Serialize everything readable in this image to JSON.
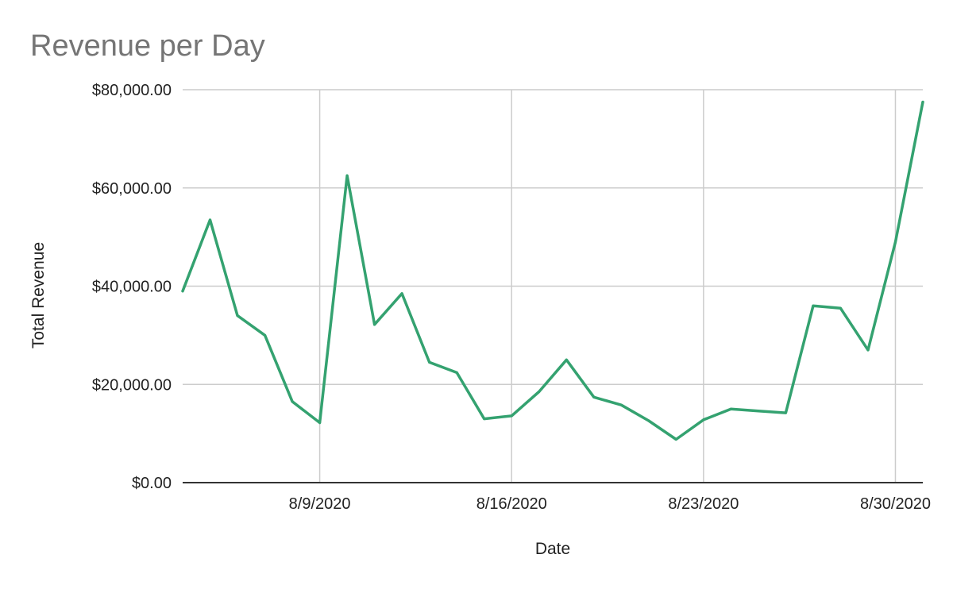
{
  "chart_data": {
    "type": "line",
    "title": "Revenue per Day",
    "xlabel": "Date",
    "ylabel": "Total Revenue",
    "ylim": [
      0,
      80000
    ],
    "yticks": [
      {
        "value": 0,
        "label": "$0.00"
      },
      {
        "value": 20000,
        "label": "$20,000.00"
      },
      {
        "value": 40000,
        "label": "$40,000.00"
      },
      {
        "value": 60000,
        "label": "$60,000.00"
      },
      {
        "value": 80000,
        "label": "$80,000.00"
      }
    ],
    "xlim": [
      "2020-08-04",
      "2020-08-31"
    ],
    "xticks": [
      {
        "value": "2020-08-09",
        "label": "8/9/2020"
      },
      {
        "value": "2020-08-16",
        "label": "8/16/2020"
      },
      {
        "value": "2020-08-23",
        "label": "8/23/2020"
      },
      {
        "value": "2020-08-30",
        "label": "8/30/2020"
      }
    ],
    "grid": true,
    "legend": "none",
    "series": [
      {
        "color": "#34a270",
        "points": [
          {
            "x": "2020-08-04",
            "y": 39000
          },
          {
            "x": "2020-08-05",
            "y": 53500
          },
          {
            "x": "2020-08-06",
            "y": 34000
          },
          {
            "x": "2020-08-07",
            "y": 30000
          },
          {
            "x": "2020-08-08",
            "y": 16500
          },
          {
            "x": "2020-08-09",
            "y": 12200
          },
          {
            "x": "2020-08-10",
            "y": 62500
          },
          {
            "x": "2020-08-11",
            "y": 32200
          },
          {
            "x": "2020-08-12",
            "y": 38500
          },
          {
            "x": "2020-08-13",
            "y": 24500
          },
          {
            "x": "2020-08-14",
            "y": 22400
          },
          {
            "x": "2020-08-15",
            "y": 13000
          },
          {
            "x": "2020-08-16",
            "y": 13600
          },
          {
            "x": "2020-08-17",
            "y": 18500
          },
          {
            "x": "2020-08-18",
            "y": 25000
          },
          {
            "x": "2020-08-19",
            "y": 17400
          },
          {
            "x": "2020-08-20",
            "y": 15800
          },
          {
            "x": "2020-08-21",
            "y": 12600
          },
          {
            "x": "2020-08-22",
            "y": 8800
          },
          {
            "x": "2020-08-23",
            "y": 12800
          },
          {
            "x": "2020-08-24",
            "y": 15000
          },
          {
            "x": "2020-08-25",
            "y": 14600
          },
          {
            "x": "2020-08-26",
            "y": 14200
          },
          {
            "x": "2020-08-27",
            "y": 36000
          },
          {
            "x": "2020-08-28",
            "y": 35500
          },
          {
            "x": "2020-08-29",
            "y": 27000
          },
          {
            "x": "2020-08-30",
            "y": 49000
          },
          {
            "x": "2020-08-31",
            "y": 77500
          }
        ]
      }
    ]
  }
}
